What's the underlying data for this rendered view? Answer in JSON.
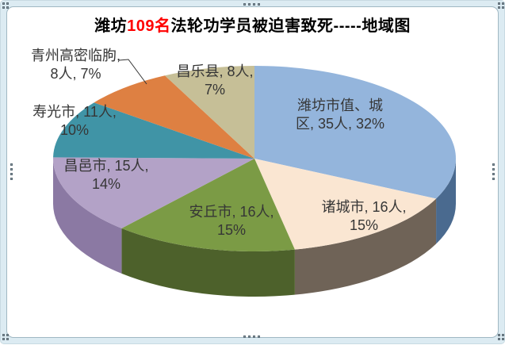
{
  "window": {
    "kind": "embedded-chart-object-selected",
    "frame_band_color": "#dcebf2",
    "frame_line_color": "#a0b8c3",
    "plot_background": "#ffffff"
  },
  "title": {
    "part1": "潍坊",
    "part2": "109名",
    "part3": "法轮功学员被迫害致死-----地域图",
    "accent_color": "#ff0000",
    "text_color": "#000000"
  },
  "chart_data": {
    "type": "pie",
    "style": "3d",
    "title": "潍坊109名法轮功学员被迫害致死-----地域图",
    "total": 109,
    "unit": "人",
    "start_angle_deg": 0,
    "direction": "clockwise",
    "legend": "none",
    "slices": [
      {
        "name": "潍坊市值、城区",
        "value": 35,
        "pct": "32%",
        "color": "#94b5dc",
        "side_color": "#4a6a8f",
        "label": [
          "潍坊市值、城",
          "区, 35人, 32%"
        ]
      },
      {
        "name": "诸城市",
        "value": 16,
        "pct": "15%",
        "color": "#fae6d2",
        "side_color": "#6f6357",
        "label": [
          "诸城市, 16人,",
          "15%"
        ]
      },
      {
        "name": "安丘市",
        "value": 16,
        "pct": "15%",
        "color": "#7b9b45",
        "side_color": "#4d612b",
        "label": [
          "安丘市, 16人,",
          "15%"
        ]
      },
      {
        "name": "昌邑市",
        "value": 15,
        "pct": "14%",
        "color": "#b3a2c7",
        "side_color": "#8b79a3",
        "label": [
          "昌邑市, 15人,",
          "14%"
        ]
      },
      {
        "name": "寿光市",
        "value": 11,
        "pct": "10%",
        "color": "#4094a6",
        "side_color": "#2a6875",
        "label": [
          "寿光市, 11人,",
          "10%"
        ]
      },
      {
        "name": "青州高密临朐",
        "value": 8,
        "pct": "7%",
        "color": "#de8042",
        "side_color": "#a55a22",
        "label": [
          "青州高密临朐,",
          "8人, 7%"
        ]
      },
      {
        "name": "昌乐县",
        "value": 8,
        "pct": "7%",
        "color": "#c6bf97",
        "side_color": "#8e8760",
        "label": [
          "昌乐县, 8人,",
          "7%"
        ]
      }
    ]
  }
}
